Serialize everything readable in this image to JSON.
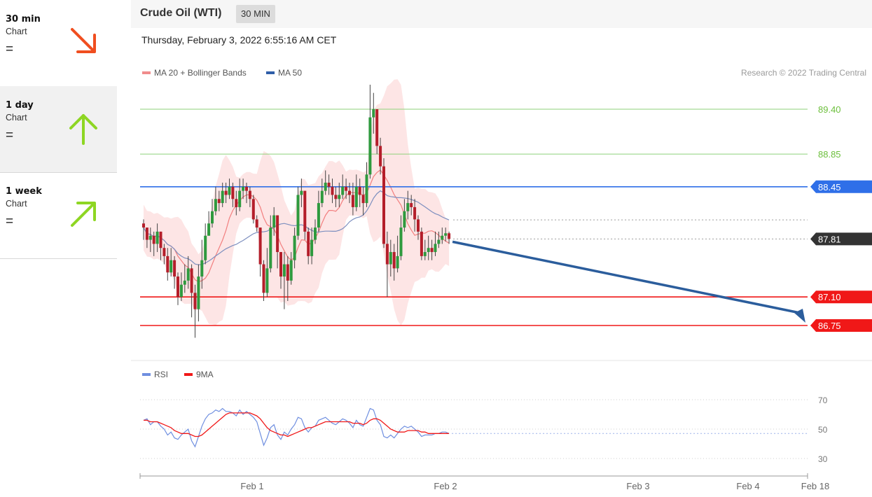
{
  "sidebar": {
    "items": [
      {
        "name": "30 min",
        "sub": "Chart",
        "status": "=",
        "direction": "down",
        "icon": "arrow-down-right-icon",
        "color": "#f04e1f"
      },
      {
        "name": "1 day",
        "sub": "Chart",
        "status": "=",
        "direction": "up",
        "icon": "arrow-up-icon",
        "color": "#8ed623"
      },
      {
        "name": "1 week",
        "sub": "Chart",
        "status": "=",
        "direction": "up-right",
        "icon": "arrow-up-right-icon",
        "color": "#8ed623"
      }
    ]
  },
  "header": {
    "title": "Crude Oil (WTI)",
    "interval": "30 MIN",
    "timestamp": "Thursday, February 3, 2022 6:55:16 AM CET"
  },
  "chart_data": [
    {
      "type": "candlestick",
      "legend": [
        {
          "name": "MA 20 + Bollinger Bands",
          "color": "#f08c8c"
        },
        {
          "name": "MA 50",
          "color": "#2f5ea8"
        }
      ],
      "credit": "Research © 2022 Trading Central",
      "ylim": [
        86.0,
        90.0
      ],
      "x_ticks": [
        "Feb 1",
        "Feb 2",
        "Feb 3",
        "Feb 4",
        "Feb 18"
      ],
      "levels": [
        {
          "value": 89.4,
          "label": "89.40",
          "color": "#8ed27a",
          "style": "text"
        },
        {
          "value": 88.85,
          "label": "88.85",
          "color": "#8ed27a",
          "style": "text"
        },
        {
          "value": 88.45,
          "label": "88.45",
          "color": "#2f6fe8",
          "style": "tag"
        },
        {
          "value": 87.81,
          "label": "87.81",
          "color": "#333333",
          "style": "tag"
        },
        {
          "value": 87.1,
          "label": "87.10",
          "color": "#f01818",
          "style": "tag"
        },
        {
          "value": 86.75,
          "label": "86.75",
          "color": "#f01818",
          "style": "tag"
        }
      ],
      "forecast_target": 86.75,
      "colors": {
        "up": "#2e9a3e",
        "down": "#b41e2a",
        "band": "#fde0e0",
        "ma20": "#f27f7f",
        "ma50": "#7d8fbf"
      },
      "close": [
        87.95,
        87.8,
        87.85,
        87.75,
        87.9,
        87.7,
        87.6,
        87.4,
        87.55,
        87.35,
        87.1,
        87.25,
        87.3,
        87.45,
        87.15,
        86.95,
        87.35,
        87.55,
        87.85,
        88.0,
        88.15,
        88.3,
        88.25,
        88.4,
        88.35,
        88.45,
        88.3,
        88.2,
        88.4,
        88.45,
        88.4,
        88.3,
        88.05,
        87.95,
        87.5,
        87.15,
        87.45,
        87.95,
        88.1,
        87.65,
        87.35,
        87.5,
        87.3,
        87.55,
        87.85,
        88.35,
        88.4,
        87.9,
        87.6,
        87.8,
        87.95,
        88.25,
        88.4,
        88.5,
        88.45,
        88.35,
        88.3,
        88.35,
        88.45,
        88.4,
        88.35,
        88.2,
        88.45,
        88.35,
        88.25,
        88.6,
        89.3,
        89.4,
        88.95,
        88.7,
        87.75,
        87.5,
        87.65,
        87.45,
        87.6,
        87.95,
        88.15,
        88.25,
        88.2,
        88.05,
        87.9,
        87.6,
        87.65,
        87.7,
        87.65,
        87.75,
        87.8,
        87.85,
        87.88,
        87.81
      ],
      "high": [
        88.05,
        87.95,
        87.95,
        87.9,
        88.0,
        87.9,
        87.75,
        87.7,
        87.7,
        87.6,
        87.4,
        87.4,
        87.5,
        87.6,
        87.5,
        87.25,
        87.5,
        87.8,
        88.0,
        88.15,
        88.3,
        88.45,
        88.4,
        88.5,
        88.5,
        88.55,
        88.5,
        88.4,
        88.55,
        88.55,
        88.5,
        88.45,
        88.35,
        88.1,
        87.95,
        87.55,
        87.7,
        88.1,
        88.2,
        88.1,
        87.65,
        87.65,
        87.6,
        87.65,
        87.95,
        88.45,
        88.55,
        88.4,
        87.95,
        87.95,
        88.05,
        88.4,
        88.55,
        88.65,
        88.6,
        88.55,
        88.45,
        88.5,
        88.6,
        88.55,
        88.5,
        88.5,
        88.6,
        88.55,
        88.45,
        88.75,
        89.7,
        89.6,
        89.4,
        89.05,
        88.8,
        87.9,
        87.8,
        87.75,
        87.85,
        88.1,
        88.3,
        88.4,
        88.35,
        88.3,
        88.1,
        87.95,
        87.8,
        87.85,
        87.8,
        87.9,
        87.9,
        87.95,
        87.95,
        87.9
      ],
      "low": [
        87.8,
        87.7,
        87.65,
        87.6,
        87.65,
        87.55,
        87.5,
        87.3,
        87.35,
        87.2,
        87.0,
        87.05,
        87.15,
        87.2,
        86.85,
        86.6,
        86.8,
        87.2,
        87.5,
        87.85,
        87.95,
        88.1,
        88.15,
        88.2,
        88.25,
        88.3,
        88.2,
        88.1,
        88.15,
        88.3,
        88.25,
        88.2,
        88.0,
        87.9,
        87.35,
        87.05,
        87.1,
        87.4,
        87.85,
        87.45,
        87.2,
        86.95,
        87.05,
        87.25,
        87.45,
        87.8,
        88.2,
        87.8,
        87.5,
        87.5,
        87.75,
        87.9,
        88.2,
        88.35,
        88.35,
        88.25,
        88.2,
        88.2,
        88.3,
        88.3,
        88.25,
        88.1,
        88.15,
        88.2,
        88.1,
        88.2,
        88.55,
        89.1,
        88.85,
        88.6,
        87.7,
        87.1,
        87.35,
        87.3,
        87.4,
        87.55,
        87.9,
        88.05,
        88.1,
        87.9,
        87.8,
        87.55,
        87.55,
        87.55,
        87.55,
        87.6,
        87.7,
        87.75,
        87.78,
        87.75
      ]
    },
    {
      "type": "line",
      "legend": [
        {
          "name": "RSI",
          "color": "#6f8fe0"
        },
        {
          "name": "9MA",
          "color": "#f01818"
        }
      ],
      "ylim": [
        20,
        80
      ],
      "y_ticks": [
        70,
        50,
        30
      ],
      "x_ticks": [
        "Feb 1",
        "Feb 2",
        "Feb 3",
        "Feb 4",
        "Feb 18"
      ],
      "rsi": [
        56,
        57,
        53,
        55,
        55,
        52,
        50,
        46,
        48,
        44,
        43,
        46,
        48,
        50,
        42,
        38,
        45,
        52,
        57,
        60,
        61,
        63,
        62,
        64,
        62,
        62,
        61,
        59,
        63,
        60,
        62,
        60,
        58,
        55,
        47,
        39,
        44,
        51,
        53,
        46,
        43,
        48,
        46,
        50,
        53,
        58,
        57,
        51,
        48,
        51,
        52,
        56,
        57,
        58,
        56,
        54,
        53,
        55,
        57,
        56,
        54,
        51,
        56,
        53,
        52,
        58,
        64,
        63,
        56,
        53,
        45,
        44,
        46,
        44,
        47,
        50,
        52,
        51,
        52,
        50,
        48,
        45,
        46,
        46,
        46,
        47,
        47,
        48,
        48,
        47
      ],
      "ma9": [
        56,
        56,
        55,
        55,
        55,
        54,
        53,
        52,
        51,
        49,
        48,
        47,
        47,
        47,
        46,
        45,
        45,
        46,
        48,
        50,
        52,
        54,
        56,
        58,
        60,
        61,
        61,
        61,
        61,
        61,
        61,
        61,
        60,
        59,
        57,
        54,
        51,
        49,
        48,
        47,
        46,
        46,
        45,
        46,
        47,
        48,
        49,
        50,
        51,
        51,
        52,
        53,
        54,
        55,
        55,
        55,
        55,
        55,
        55,
        55,
        55,
        54,
        54,
        54,
        53,
        54,
        56,
        57,
        57,
        56,
        54,
        52,
        50,
        49,
        48,
        48,
        48,
        49,
        49,
        49,
        49,
        48,
        48,
        47,
        47,
        47,
        47,
        47,
        47,
        47
      ]
    }
  ]
}
